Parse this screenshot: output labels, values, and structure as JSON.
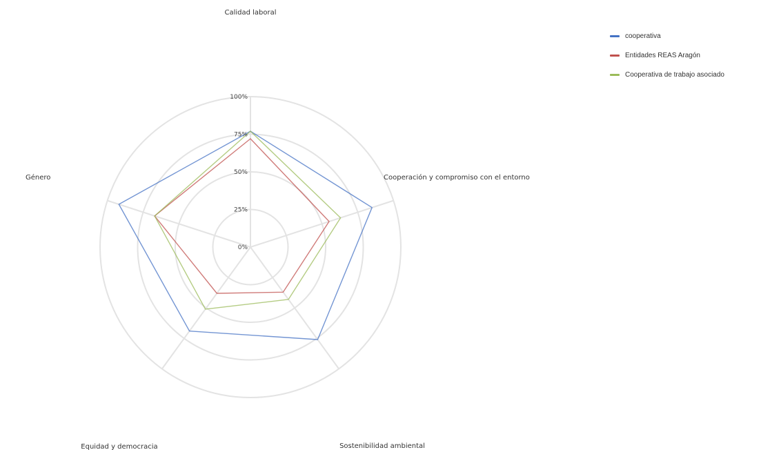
{
  "chart_data": {
    "type": "radar",
    "title": "",
    "axes": [
      "Calidad laboral",
      "Cooperación y compromiso con el entorno",
      "Sostenibilidad ambiental",
      "Equidad y democracia",
      "Género"
    ],
    "radial_ticks": [
      "0%",
      "25%",
      "50%",
      "75%",
      "100%"
    ],
    "range": [
      0,
      100
    ],
    "grid": true,
    "legend_position": "top-right",
    "series": [
      {
        "name": "cooperativa",
        "color": "#4472C4",
        "values": [
          77,
          85,
          76,
          69,
          92
        ]
      },
      {
        "name": "Entidades REAS Aragón",
        "color": "#C0504D",
        "values": [
          72,
          55,
          37,
          38,
          67
        ]
      },
      {
        "name": "Cooperativa de trabajo asociado",
        "color": "#9BBB59",
        "values": [
          77,
          63,
          43,
          51,
          67
        ]
      }
    ]
  }
}
